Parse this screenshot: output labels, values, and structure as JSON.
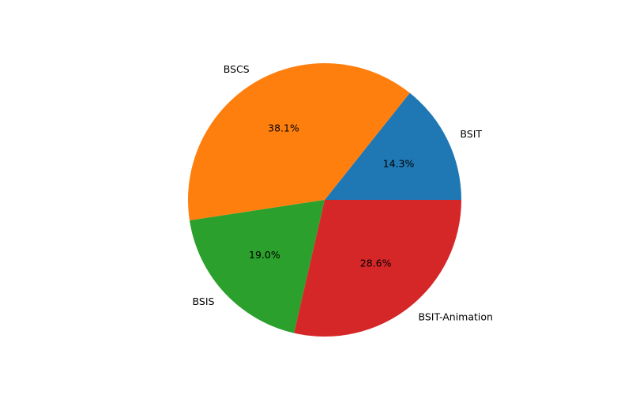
{
  "chart_data": {
    "type": "pie",
    "labels": [
      "BSIT",
      "BSCS",
      "BSIS",
      "BSIT-Animation"
    ],
    "values": [
      14.3,
      38.1,
      19.0,
      28.6
    ],
    "percent_labels": [
      "14.3%",
      "38.1%",
      "19.0%",
      "28.6%"
    ],
    "colors": [
      "#1f77b4",
      "#ff7f0e",
      "#2ca02c",
      "#d62728"
    ],
    "start_angle_deg": 0,
    "direction": "counterclockwise",
    "legend": false
  }
}
